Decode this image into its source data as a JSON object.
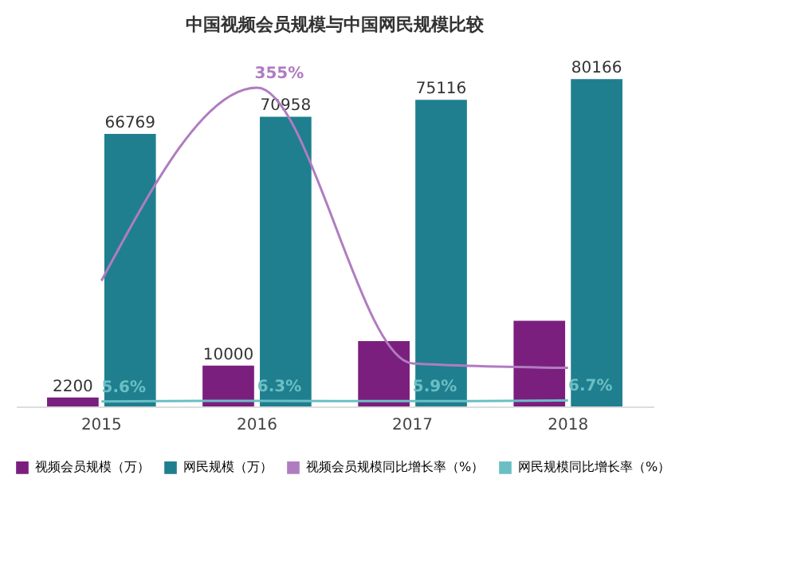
{
  "chart_data": {
    "type": "bar",
    "title": "中国视频会员规模与中国网民规模比较",
    "categories": [
      "2015",
      "2016",
      "2017",
      "2018"
    ],
    "legend": "bottom",
    "series": [
      {
        "name": "视频会员规模（万）",
        "color": "#7b1f7e",
        "values": [
          2200,
          10000,
          16000,
          21000
        ],
        "value_labels": [
          "2200",
          "10000",
          null,
          null
        ]
      },
      {
        "name": "网民规模（万）",
        "color": "#1f7f8f",
        "values": [
          66769,
          70958,
          75116,
          80166
        ],
        "value_labels": [
          "66769",
          "70958",
          "75116",
          "80166"
        ]
      },
      {
        "name": "视频会员规模同比增长率（%）",
        "type": "line",
        "axis": "y2",
        "color": "#b07cc0",
        "values": [
          140,
          355,
          48,
          43
        ],
        "value_labels": [
          null,
          "355%",
          null,
          null
        ]
      },
      {
        "name": "网民规模同比增长率（%）",
        "type": "line",
        "axis": "y2",
        "color": "#6bbfc4",
        "values": [
          5.6,
          6.3,
          5.9,
          6.7
        ],
        "value_labels": [
          "5.6%",
          "6.3%",
          "5.9%",
          "6.7%"
        ]
      }
    ]
  }
}
